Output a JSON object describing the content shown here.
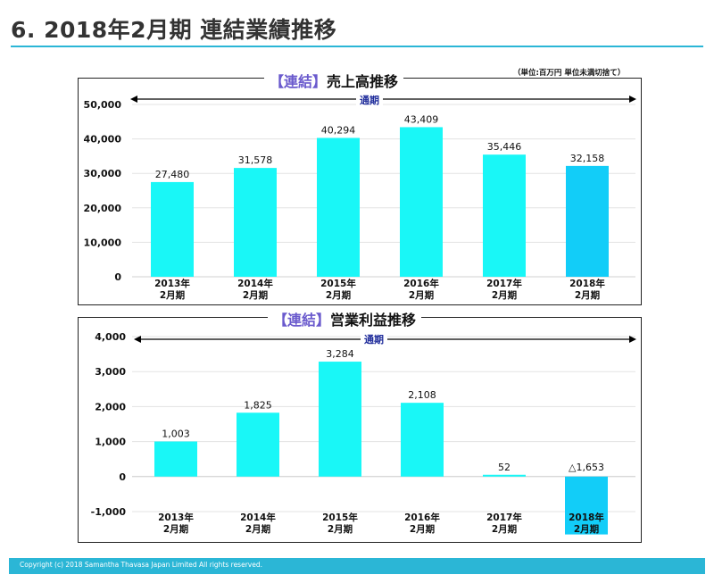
{
  "page": {
    "title": "6. 2018年2月期 連結業績推移",
    "footer": "Copyright  (c) 2018  Samantha Thavasa Japan Limited All rights reserved."
  },
  "colors": {
    "accent": "#2bb6d6",
    "bar": "#19f7f7",
    "bar_latest": "#12cdf8",
    "bracket": "#6a5acd",
    "period_text": "#1d2a9a"
  },
  "chart_data": [
    {
      "type": "bar",
      "title_bracket": "【連結】",
      "title_label": "売上高推移",
      "unit_note": "（単位:百万円  単位未満切捨て）",
      "period_label": "通期",
      "categories": [
        [
          "2013年",
          "2月期"
        ],
        [
          "2014年",
          "2月期"
        ],
        [
          "2015年",
          "2月期"
        ],
        [
          "2016年",
          "2月期"
        ],
        [
          "2017年",
          "2月期"
        ],
        [
          "2018年",
          "2月期"
        ]
      ],
      "values": [
        27480,
        31578,
        40294,
        43409,
        35446,
        32158
      ],
      "value_labels": [
        "27,480",
        "31,578",
        "40,294",
        "43,409",
        "35,446",
        "32,158"
      ],
      "yticks": [
        "50,000",
        "40,000",
        "30,000",
        "20,000",
        "10,000",
        "0"
      ],
      "ytick_values": [
        50000,
        40000,
        30000,
        20000,
        10000,
        0
      ],
      "ylim": [
        0,
        50000
      ],
      "grid": true
    },
    {
      "type": "bar",
      "title_bracket": "【連結】",
      "title_label": "営業利益推移",
      "period_label": "通期",
      "categories": [
        [
          "2013年",
          "2月期"
        ],
        [
          "2014年",
          "2月期"
        ],
        [
          "2015年",
          "2月期"
        ],
        [
          "2016年",
          "2月期"
        ],
        [
          "2017年",
          "2月期"
        ],
        [
          "2018年",
          "2月期"
        ]
      ],
      "values": [
        1003,
        1825,
        3284,
        2108,
        52,
        -1653
      ],
      "value_labels": [
        "1,003",
        "1,825",
        "3,284",
        "2,108",
        "52",
        "△1,653"
      ],
      "yticks": [
        "4,000",
        "3,000",
        "2,000",
        "1,000",
        "0",
        "-1,000"
      ],
      "ytick_values": [
        4000,
        3000,
        2000,
        1000,
        0,
        -1000
      ],
      "ylim": [
        -1000,
        4000
      ],
      "grid": true
    }
  ]
}
